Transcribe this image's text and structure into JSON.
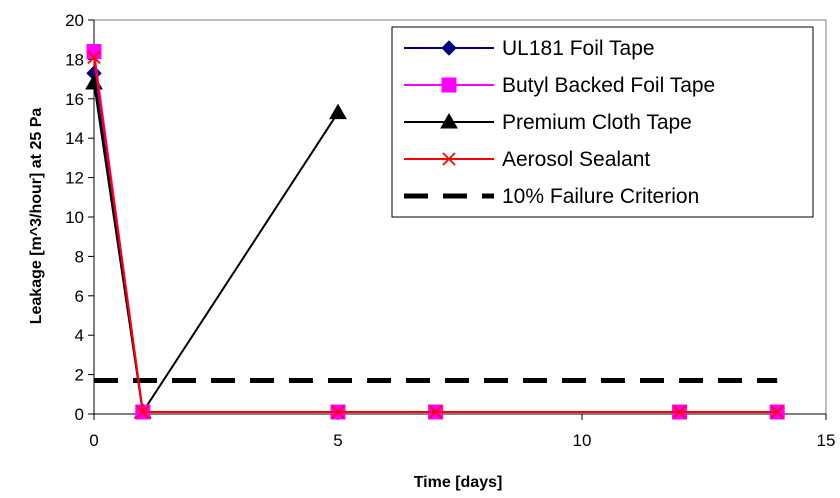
{
  "chart_data": {
    "type": "line",
    "title": "",
    "xlabel": "Time [days]",
    "ylabel": "Leakage [m^3/hour] at 25 Pa",
    "xlim": [
      0,
      15
    ],
    "ylim": [
      0,
      20
    ],
    "xticks": [
      "0",
      "5",
      "10",
      "15"
    ],
    "yticks": [
      "0",
      "2",
      "4",
      "6",
      "8",
      "10",
      "12",
      "14",
      "16",
      "18",
      "20"
    ],
    "grid": false,
    "legend_position": "top-right",
    "series": [
      {
        "name": "UL181 Foil Tape",
        "color": "#000080",
        "marker": "diamond",
        "x": [
          0,
          1,
          5,
          7,
          12,
          14
        ],
        "y": [
          17.3,
          0.1,
          0.1,
          0.1,
          0.1,
          0.1
        ]
      },
      {
        "name": "Butyl Backed Foil Tape",
        "color": "#ff00ff",
        "marker": "square",
        "x": [
          0,
          1,
          5,
          7,
          12,
          14
        ],
        "y": [
          18.4,
          0.1,
          0.1,
          0.1,
          0.1,
          0.1
        ]
      },
      {
        "name": "Premium Cloth Tape",
        "color": "#000000",
        "marker": "triangle",
        "x": [
          0,
          1,
          5
        ],
        "y": [
          16.8,
          0.1,
          15.3
        ]
      },
      {
        "name": "Aerosol Sealant",
        "color": "#ff0000",
        "marker": "x",
        "x": [
          0,
          1,
          5,
          7,
          12,
          14
        ],
        "y": [
          18.1,
          0.1,
          0.1,
          0.1,
          0.1,
          0.1
        ]
      },
      {
        "name": "10% Failure Criterion",
        "color": "#000000",
        "marker": "none",
        "dashed": true,
        "x": [
          0,
          14
        ],
        "y": [
          1.7,
          1.7
        ]
      }
    ]
  }
}
